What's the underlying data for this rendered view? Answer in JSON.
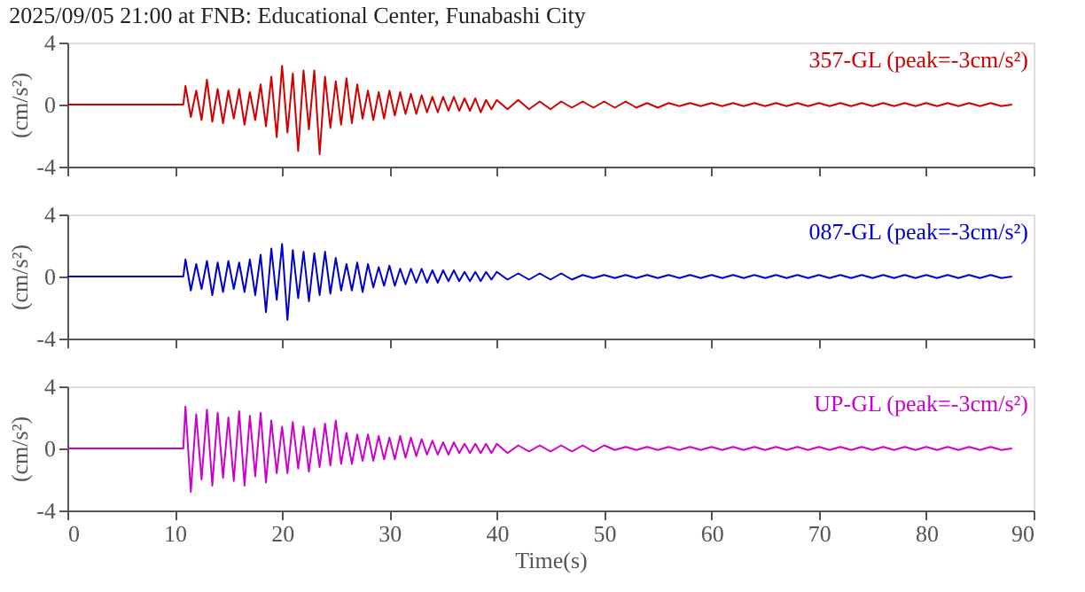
{
  "chart_data": [
    {
      "type": "line",
      "title": "2025/09/05 21:00 at FNB: Educational Center, Funabashi City",
      "ylabel": "(cm/s²)",
      "annotations": [
        "357-GL (peak=-3cm/s²)"
      ],
      "xlim": [
        0,
        90
      ],
      "xticks": [
        0,
        10,
        20,
        30,
        40,
        50,
        60,
        70,
        80,
        90
      ],
      "ylim": [
        -4,
        4
      ],
      "yticks": [
        -4,
        0,
        4
      ],
      "tick_labels": "y",
      "grid": false,
      "x": [
        0,
        10.8,
        11,
        11.5,
        12,
        12.5,
        13,
        13.5,
        14,
        14.5,
        15,
        15.5,
        16,
        16.5,
        17,
        17.5,
        18,
        18.5,
        19,
        19.5,
        20,
        20.5,
        21,
        21.5,
        22,
        22.5,
        23,
        23.5,
        24,
        24.5,
        25,
        25.5,
        26,
        26.5,
        27,
        27.5,
        28,
        28.5,
        29,
        29.5,
        30,
        30.5,
        31,
        31.5,
        32,
        32.5,
        33,
        33.5,
        34,
        34.5,
        35,
        35.5,
        36,
        36.5,
        37,
        37.5,
        38,
        38.5,
        39,
        39.5,
        40,
        41,
        42,
        43,
        44,
        45,
        46,
        47,
        48,
        49,
        50,
        51,
        52,
        53,
        54,
        55,
        56,
        57,
        58,
        59,
        60,
        61,
        62,
        63,
        64,
        65,
        66,
        67,
        68,
        69,
        70,
        71,
        72,
        73,
        74,
        75,
        76,
        77,
        78,
        79,
        80,
        81,
        82,
        83,
        84,
        85,
        86,
        87,
        88
      ],
      "series": [
        {
          "color": "#d00000",
          "values": [
            0,
            0,
            1.2,
            -0.8,
            0.9,
            -1.0,
            1.6,
            -1.1,
            1.0,
            -1.2,
            0.9,
            -0.9,
            1.0,
            -1.3,
            0.8,
            -1.0,
            1.3,
            -1.4,
            1.8,
            -2.1,
            2.5,
            -1.8,
            2.0,
            -3.0,
            2.2,
            -1.6,
            2.2,
            -3.2,
            1.8,
            -1.5,
            1.5,
            -1.3,
            1.7,
            -1.2,
            1.3,
            -0.9,
            0.9,
            -1.0,
            0.8,
            -0.9,
            0.9,
            -0.7,
            0.8,
            -0.6,
            0.7,
            -0.6,
            0.6,
            -0.5,
            0.5,
            -0.5,
            0.5,
            -0.4,
            0.5,
            -0.4,
            0.4,
            -0.4,
            0.4,
            -0.5,
            0.3,
            -0.3,
            0.3,
            -0.3,
            0.3,
            -0.3,
            0.2,
            -0.3,
            0.2,
            -0.2,
            0.2,
            -0.2,
            0.2,
            -0.2,
            0.2,
            -0.2,
            0.1,
            -0.2,
            0.1,
            -0.1,
            0.1,
            -0.1,
            0.1,
            -0.1,
            0.1,
            -0.1,
            0.1,
            -0.1,
            0.1,
            -0.1,
            0.1,
            -0.1,
            0.1,
            -0.1,
            0.1,
            -0.1,
            0.1,
            -0.1,
            0.1,
            -0.1,
            0.1,
            -0.1,
            0.1,
            -0.1,
            0.1,
            -0.1,
            0.1,
            -0.1,
            0.1,
            -0.1,
            0
          ]
        }
      ]
    },
    {
      "type": "line",
      "ylabel": "(cm/s²)",
      "annotations": [
        "087-GL (peak=-3cm/s²)"
      ],
      "xlim": [
        0,
        90
      ],
      "xticks": [
        0,
        10,
        20,
        30,
        40,
        50,
        60,
        70,
        80,
        90
      ],
      "ylim": [
        -4,
        4
      ],
      "yticks": [
        -4,
        0,
        4
      ],
      "tick_labels": "y",
      "grid": false,
      "x": [
        0,
        10.8,
        11,
        11.5,
        12,
        12.5,
        13,
        13.5,
        14,
        14.5,
        15,
        15.5,
        16,
        16.5,
        17,
        17.5,
        18,
        18.5,
        19,
        19.5,
        20,
        20.5,
        21,
        21.5,
        22,
        22.5,
        23,
        23.5,
        24,
        24.5,
        25,
        25.5,
        26,
        26.5,
        27,
        27.5,
        28,
        28.5,
        29,
        29.5,
        30,
        30.5,
        31,
        31.5,
        32,
        32.5,
        33,
        33.5,
        34,
        34.5,
        35,
        35.5,
        36,
        36.5,
        37,
        37.5,
        38,
        38.5,
        39,
        39.5,
        40,
        41,
        42,
        43,
        44,
        45,
        46,
        47,
        48,
        49,
        50,
        51,
        52,
        53,
        54,
        55,
        56,
        57,
        58,
        59,
        60,
        61,
        62,
        63,
        64,
        65,
        66,
        67,
        68,
        69,
        70,
        71,
        72,
        73,
        74,
        75,
        76,
        77,
        78,
        79,
        80,
        81,
        82,
        83,
        84,
        85,
        86,
        87,
        88
      ],
      "series": [
        {
          "color": "#0000cc",
          "values": [
            0,
            0,
            1.1,
            -0.9,
            0.8,
            -0.8,
            1.0,
            -1.2,
            0.9,
            -1.0,
            1.0,
            -0.8,
            0.9,
            -1.0,
            1.1,
            -1.2,
            1.4,
            -2.3,
            1.8,
            -1.5,
            2.1,
            -2.8,
            1.7,
            -1.4,
            1.6,
            -1.6,
            1.5,
            -1.2,
            1.6,
            -1.1,
            1.2,
            -0.9,
            0.8,
            -0.9,
            0.9,
            -1.0,
            0.8,
            -0.7,
            0.6,
            -0.6,
            0.7,
            -0.6,
            0.5,
            -0.5,
            0.5,
            -0.4,
            0.5,
            -0.4,
            0.4,
            -0.4,
            0.4,
            -0.3,
            0.4,
            -0.3,
            0.3,
            -0.3,
            0.3,
            -0.3,
            0.3,
            -0.2,
            0.3,
            -0.2,
            0.2,
            -0.2,
            0.2,
            -0.2,
            0.2,
            -0.2,
            0.1,
            -0.1,
            0.1,
            -0.1,
            0.1,
            -0.1,
            0.1,
            -0.1,
            0.1,
            -0.1,
            0.1,
            -0.1,
            0.1,
            -0.1,
            0.1,
            -0.1,
            0.1,
            -0.1,
            0.1,
            -0.1,
            0.1,
            -0.1,
            0.1,
            -0.1,
            0.1,
            -0.1,
            0.1,
            -0.1,
            0.1,
            -0.1,
            0.1,
            -0.1,
            0.1,
            -0.1,
            0.1,
            -0.1,
            0.1,
            -0.1,
            0.1,
            -0.1,
            0
          ]
        }
      ]
    },
    {
      "type": "line",
      "xlabel": "Time(s)",
      "ylabel": "(cm/s²)",
      "annotations": [
        "UP-GL (peak=-3cm/s²)"
      ],
      "xlim": [
        0,
        90
      ],
      "xticks": [
        0,
        10,
        20,
        30,
        40,
        50,
        60,
        70,
        80,
        90
      ],
      "ylim": [
        -4,
        4
      ],
      "yticks": [
        -4,
        0,
        4
      ],
      "grid": false,
      "x": [
        0,
        10.8,
        11,
        11.5,
        12,
        12.5,
        13,
        13.5,
        14,
        14.5,
        15,
        15.5,
        16,
        16.5,
        17,
        17.5,
        18,
        18.5,
        19,
        19.5,
        20,
        20.5,
        21,
        21.5,
        22,
        22.5,
        23,
        23.5,
        24,
        24.5,
        25,
        25.5,
        26,
        26.5,
        27,
        27.5,
        28,
        28.5,
        29,
        29.5,
        30,
        30.5,
        31,
        31.5,
        32,
        32.5,
        33,
        33.5,
        34,
        34.5,
        35,
        35.5,
        36,
        36.5,
        37,
        37.5,
        38,
        38.5,
        39,
        39.5,
        40,
        41,
        42,
        43,
        44,
        45,
        46,
        47,
        48,
        49,
        50,
        51,
        52,
        53,
        54,
        55,
        56,
        57,
        58,
        59,
        60,
        61,
        62,
        63,
        64,
        65,
        66,
        67,
        68,
        69,
        70,
        71,
        72,
        73,
        74,
        75,
        76,
        77,
        78,
        79,
        80,
        81,
        82,
        83,
        84,
        85,
        86,
        87,
        88
      ],
      "series": [
        {
          "color": "#cc00cc",
          "values": [
            0,
            0,
            2.7,
            -2.8,
            2.2,
            -2.0,
            2.5,
            -2.4,
            2.3,
            -1.9,
            2.0,
            -2.1,
            2.4,
            -2.4,
            2.1,
            -1.8,
            2.3,
            -2.2,
            1.8,
            -1.6,
            1.4,
            -1.6,
            1.7,
            -1.3,
            1.4,
            -1.5,
            1.3,
            -1.2,
            1.6,
            -1.1,
            1.8,
            -1.0,
            1.0,
            -1.0,
            0.9,
            -0.8,
            0.9,
            -0.8,
            0.8,
            -0.7,
            0.7,
            -0.7,
            0.8,
            -0.6,
            0.7,
            -0.5,
            0.6,
            -0.4,
            0.5,
            -0.4,
            0.4,
            -0.4,
            0.4,
            -0.3,
            0.3,
            -0.3,
            0.3,
            -0.3,
            0.3,
            -0.3,
            0.3,
            -0.3,
            0.2,
            -0.2,
            0.2,
            -0.2,
            0.2,
            -0.2,
            0.2,
            -0.2,
            0.2,
            -0.1,
            0.1,
            -0.1,
            0.1,
            -0.1,
            0.1,
            -0.1,
            0.1,
            -0.1,
            0.1,
            -0.1,
            0.1,
            -0.1,
            0.1,
            -0.1,
            0.1,
            -0.1,
            0.1,
            -0.1,
            0.1,
            -0.1,
            0.1,
            -0.1,
            0.1,
            -0.1,
            0.1,
            -0.1,
            0.1,
            -0.1,
            0.1,
            -0.1,
            0.1,
            -0.1,
            0.1,
            -0.1,
            0.1,
            -0.1,
            0
          ]
        }
      ]
    }
  ]
}
